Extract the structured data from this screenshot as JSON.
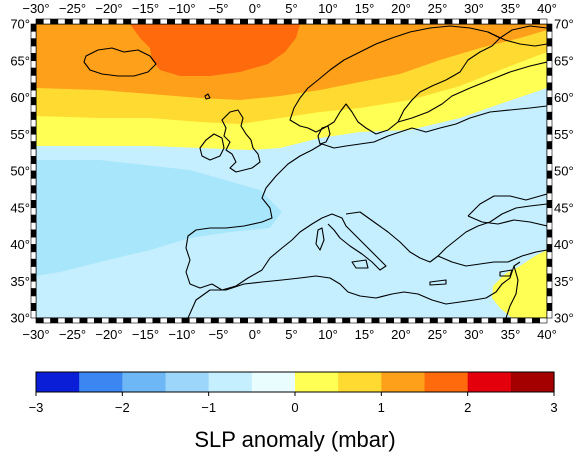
{
  "map": {
    "lon_ticks": [
      "−30°",
      "−25°",
      "−20°",
      "−15°",
      "−10°",
      "−5°",
      "0°",
      "5°",
      "10°",
      "15°",
      "20°",
      "25°",
      "30°",
      "35°",
      "40°"
    ],
    "lat_ticks": [
      "30°",
      "35°",
      "40°",
      "45°",
      "50°",
      "55°",
      "60°",
      "65°",
      "70°"
    ],
    "lon_range": [
      -30,
      40
    ],
    "lat_range": [
      30,
      70
    ]
  },
  "colorbar": {
    "title": "SLP anomaly (mbar)",
    "labels": [
      "−3",
      "−2",
      "−1",
      "0",
      "1",
      "2",
      "3"
    ],
    "colors": [
      "#0a1ed8",
      "#3b86f0",
      "#6db7f7",
      "#9cd6fa",
      "#c5efff",
      "#e9fdff",
      "#ffff54",
      "#ffda30",
      "#ffa01a",
      "#ff6a0d",
      "#e3000c",
      "#a50000"
    ]
  },
  "legend_levels": {
    "c_m1_0": "#c5efff",
    "c_0_05": "#ffff54",
    "c_05_1": "#ffda30",
    "c_1_15": "#ffa01a",
    "c_15_2": "#ff6a0d"
  }
}
